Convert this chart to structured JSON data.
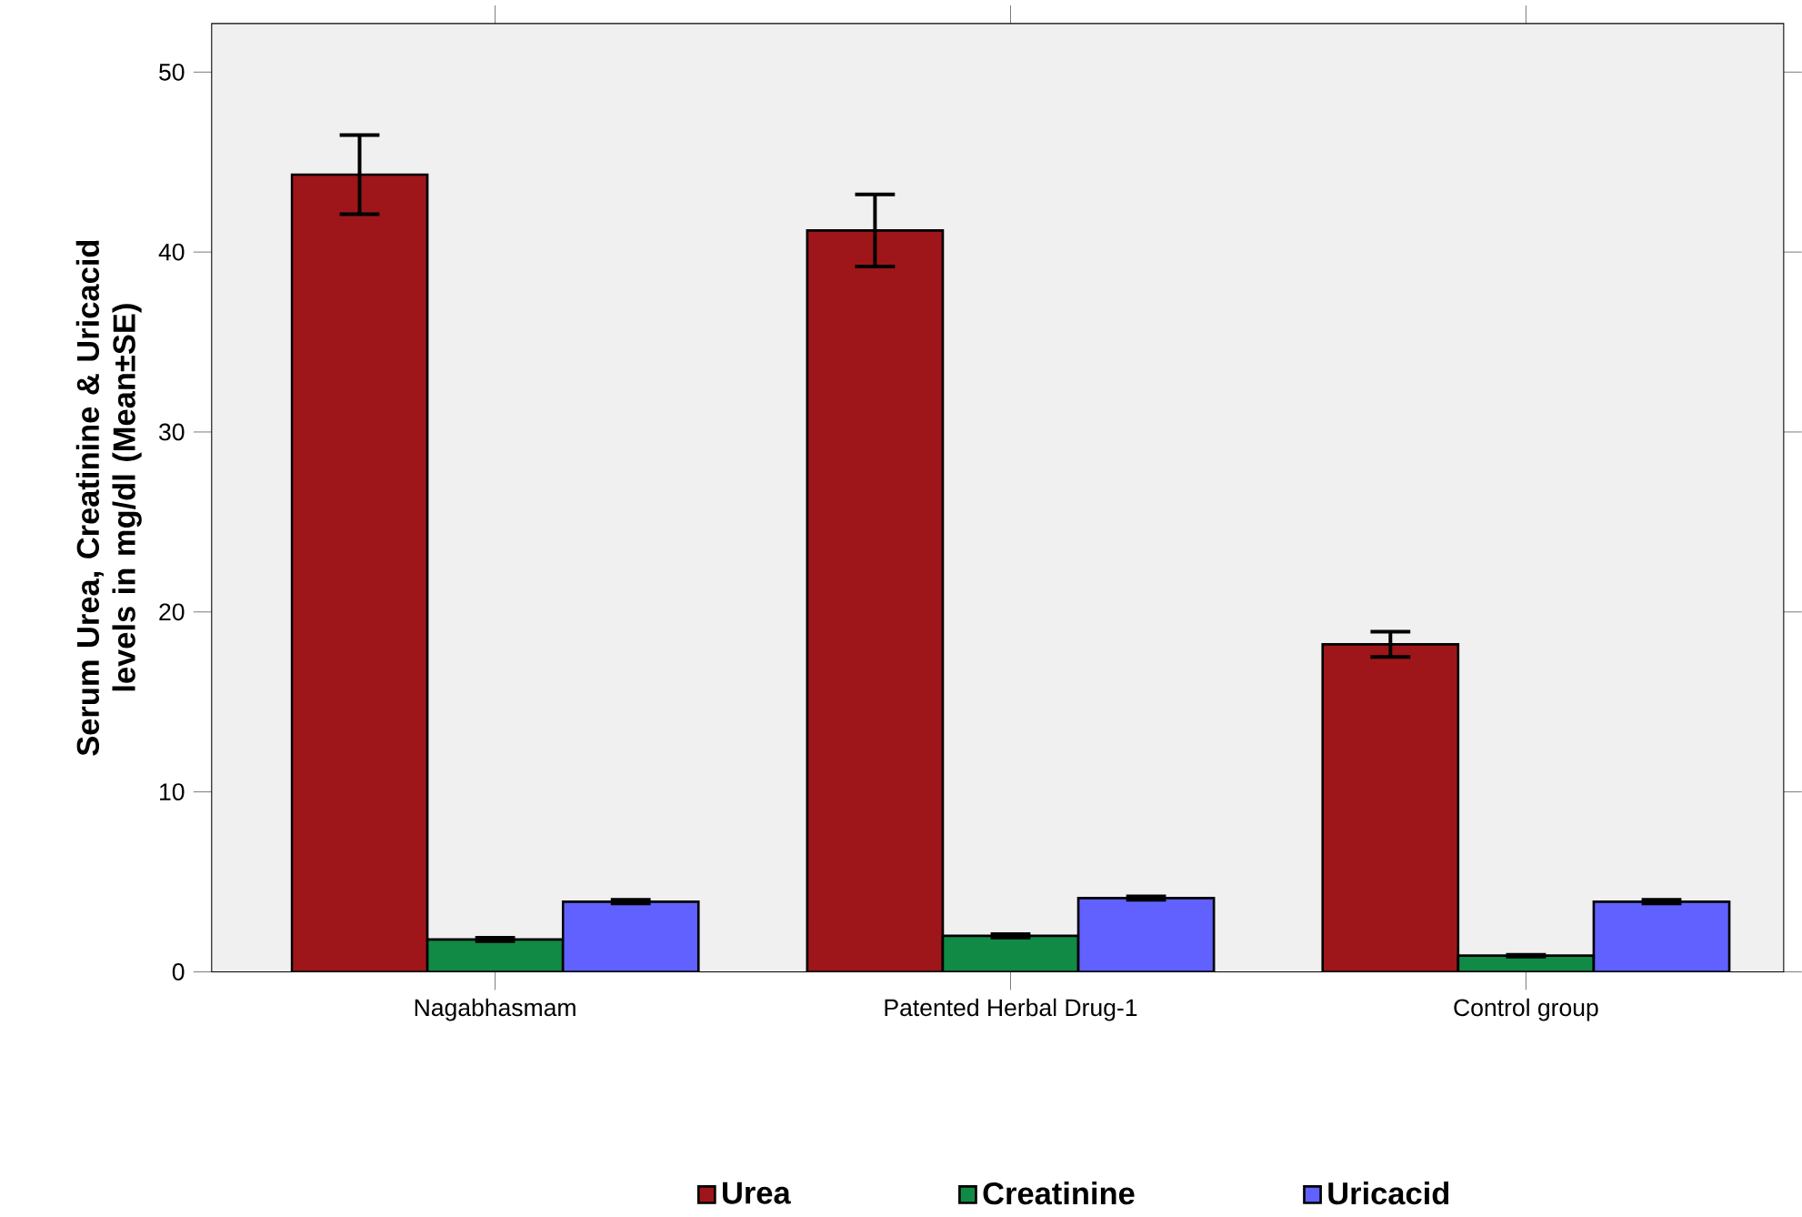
{
  "chart_data": {
    "type": "bar",
    "ylabel": "Serum Urea, Creatinine & Uricacid levels in mg/dl (Mean±SE)",
    "categories": [
      "Nagabhasmam",
      "Patented Herbal Drug-1",
      "Control group"
    ],
    "series": [
      {
        "name": "Urea",
        "color": "#9e1619",
        "values": [
          44.3,
          41.2,
          18.2
        ],
        "errors": [
          2.2,
          2.0,
          0.7
        ]
      },
      {
        "name": "Creatinine",
        "color": "#118a45",
        "values": [
          1.8,
          2.0,
          0.9
        ],
        "errors": [
          0.1,
          0.1,
          0.05
        ]
      },
      {
        "name": "Uricacid",
        "color": "#6161ff",
        "values": [
          3.9,
          4.1,
          3.9
        ],
        "errors": [
          0.1,
          0.1,
          0.1
        ]
      }
    ],
    "ylim": [
      0,
      52.7
    ],
    "yticks": [
      0,
      10,
      20,
      30,
      40,
      50
    ],
    "grid": false,
    "legend": "bottom"
  }
}
